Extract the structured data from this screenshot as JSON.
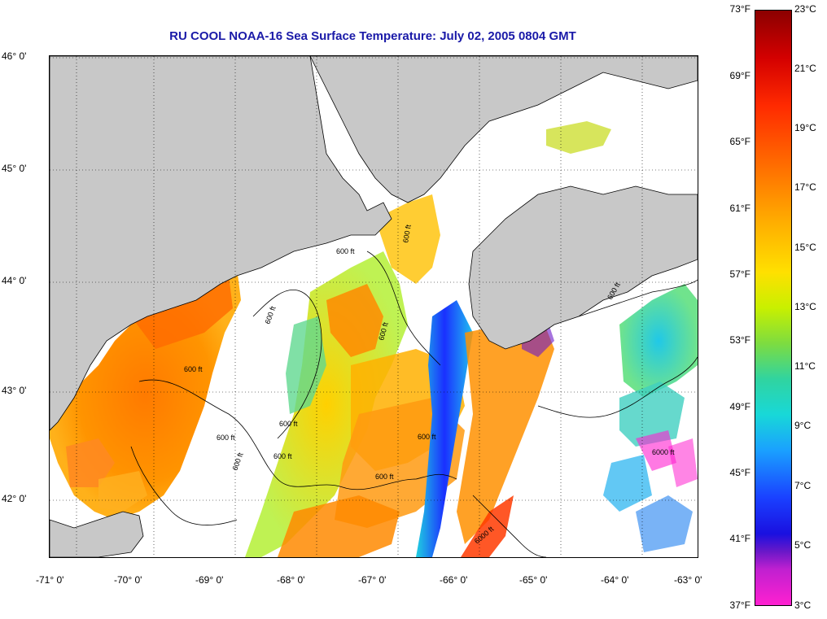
{
  "title": "RU COOL  NOAA-16  Sea Surface Temperature:  July 02, 2005 0804 GMT",
  "latitude_labels": [
    {
      "label": "46° 0'",
      "value": 46
    },
    {
      "label": "45° 0'",
      "value": 45
    },
    {
      "label": "44° 0'",
      "value": 44
    },
    {
      "label": "43° 0'",
      "value": 43
    },
    {
      "label": "42° 0'",
      "value": 42
    }
  ],
  "longitude_labels": [
    {
      "label": "-71° 0'",
      "value": -71
    },
    {
      "label": "-70° 0'",
      "value": -70
    },
    {
      "label": "-69° 0'",
      "value": -69
    },
    {
      "label": "-68° 0'",
      "value": -68
    },
    {
      "label": "-67° 0'",
      "value": -67
    },
    {
      "label": "-66° 0'",
      "value": -66
    },
    {
      "label": "-65° 0'",
      "value": -65
    },
    {
      "label": "-64° 0'",
      "value": -64
    },
    {
      "label": "-63° 0'",
      "value": -63
    }
  ],
  "colorbar": {
    "fahrenheit_labels": [
      "73°F",
      "69°F",
      "65°F",
      "61°F",
      "57°F",
      "53°F",
      "49°F",
      "45°F",
      "41°F",
      "37°F"
    ],
    "celsius_labels": [
      "23°C",
      "21°C",
      "19°C",
      "17°C",
      "15°C",
      "13°C",
      "11°C",
      "9°C",
      "7°C",
      "5°C",
      "3°C"
    ],
    "min_c": 3,
    "max_c": 23
  },
  "contour_labels": [
    "600 ft",
    "600 ft",
    "600 ft",
    "600 ft",
    "600 ft",
    "600 ft",
    "600 ft",
    "600 ft",
    "600 ft",
    "600 ft",
    "600 ft",
    "600 ft",
    "6000 ft",
    "6000 ft"
  ],
  "colors": {
    "land": "#c8c8c8",
    "cloud": "#ffffff",
    "title": "#1a1aa8"
  }
}
